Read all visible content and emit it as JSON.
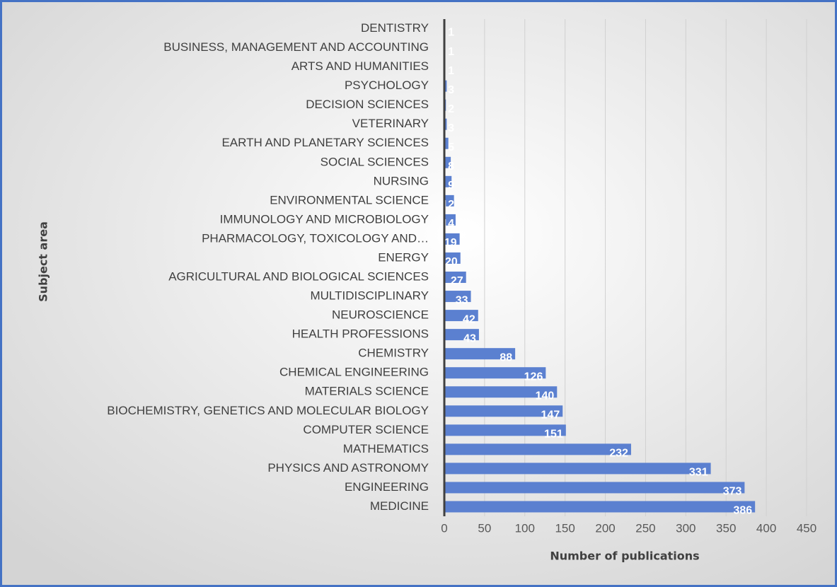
{
  "chart_data": {
    "type": "bar",
    "orientation": "horizontal",
    "y_axis_label": "Subject area",
    "x_axis_label": "Number of publications",
    "categories": [
      "DENTISTRY",
      "BUSINESS, MANAGEMENT AND ACCOUNTING",
      "ARTS AND HUMANITIES",
      "PSYCHOLOGY",
      "DECISION SCIENCES",
      "VETERINARY",
      "EARTH AND PLANETARY SCIENCES",
      "SOCIAL SCIENCES",
      "NURSING",
      "ENVIRONMENTAL SCIENCE",
      "IMMUNOLOGY AND MICROBIOLOGY",
      "PHARMACOLOGY, TOXICOLOGY AND…",
      "ENERGY",
      "AGRICULTURAL AND BIOLOGICAL SCIENCES",
      "MULTIDISCIPLINARY",
      "NEUROSCIENCE",
      "HEALTH PROFESSIONS",
      "CHEMISTRY",
      "CHEMICAL ENGINEERING",
      "MATERIALS SCIENCE",
      "BIOCHEMISTRY, GENETICS AND MOLECULAR BIOLOGY",
      "COMPUTER SCIENCE",
      "MATHEMATICS",
      "PHYSICS AND ASTRONOMY",
      "ENGINEERING",
      "MEDICINE"
    ],
    "values": [
      1,
      1,
      1,
      3,
      2,
      3,
      5,
      8,
      9,
      12,
      14,
      19,
      20,
      27,
      33,
      42,
      43,
      88,
      126,
      140,
      147,
      151,
      232,
      331,
      373,
      386
    ],
    "color": "#5b80d0",
    "xlim": [
      0,
      450
    ],
    "xticks": [
      0,
      50,
      100,
      150,
      200,
      250,
      300,
      350,
      400,
      450
    ],
    "grid": true
  }
}
